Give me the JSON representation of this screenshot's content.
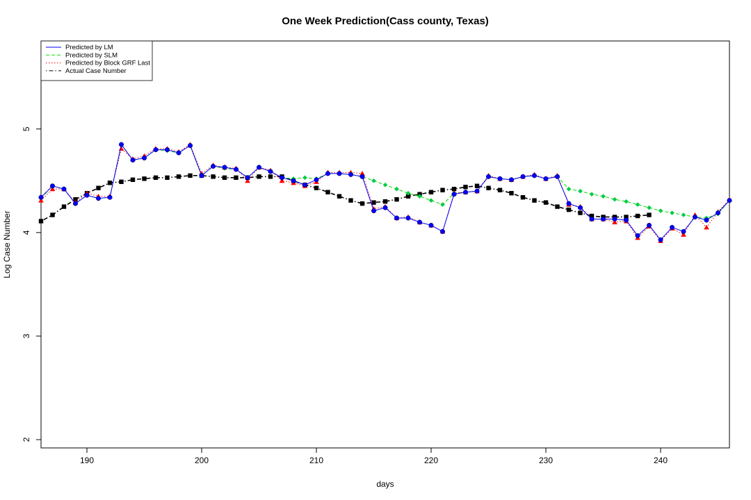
{
  "chart_data": {
    "type": "line",
    "title": "One Week Prediction(Cass county, Texas)",
    "xlabel": "days",
    "ylabel": "Log Case Number",
    "xlim": [
      186,
      246
    ],
    "ylim": [
      1.92,
      5.85
    ],
    "x_ticks": [
      190,
      200,
      210,
      220,
      230,
      240
    ],
    "y_ticks": [
      2,
      3,
      4,
      5
    ],
    "grid": false,
    "legend_position": "top-left",
    "x": [
      186,
      187,
      188,
      189,
      190,
      191,
      192,
      193,
      194,
      195,
      196,
      197,
      198,
      199,
      200,
      201,
      202,
      203,
      204,
      205,
      206,
      207,
      208,
      209,
      210,
      211,
      212,
      213,
      214,
      215,
      216,
      217,
      218,
      219,
      220,
      221,
      222,
      223,
      224,
      225,
      226,
      227,
      228,
      229,
      230,
      231,
      232,
      233,
      234,
      235,
      236,
      237,
      238,
      239,
      240,
      241,
      242,
      243,
      244,
      245,
      246
    ],
    "series": [
      {
        "name": "Predicted by LM",
        "color": "#0000ff",
        "line_style": "solid",
        "marker": "circle",
        "marker_color": "#0000ff",
        "values": [
          4.34,
          4.45,
          4.42,
          4.28,
          4.36,
          4.33,
          4.34,
          4.85,
          4.7,
          4.72,
          4.8,
          4.8,
          4.77,
          4.84,
          4.55,
          4.64,
          4.63,
          4.61,
          4.53,
          4.63,
          4.59,
          4.53,
          4.5,
          4.46,
          4.51,
          4.57,
          4.57,
          4.56,
          4.54,
          4.21,
          4.24,
          4.14,
          4.14,
          4.1,
          4.07,
          4.01,
          4.37,
          4.39,
          4.4,
          4.54,
          4.52,
          4.51,
          4.54,
          4.55,
          4.52,
          4.54,
          4.28,
          4.24,
          4.13,
          4.13,
          4.13,
          4.12,
          3.97,
          4.07,
          3.93,
          4.05,
          4.01,
          4.15,
          4.12,
          4.19,
          4.31
        ]
      },
      {
        "name": "Predicted by SLM",
        "color": "#00dd00",
        "line_style": "dashed",
        "marker": "diamond",
        "marker_color": "#00cc44",
        "values": [
          4.33,
          4.45,
          4.42,
          4.28,
          4.36,
          4.33,
          4.34,
          4.85,
          4.7,
          4.72,
          4.8,
          4.79,
          4.77,
          4.84,
          4.55,
          4.64,
          4.62,
          4.61,
          4.53,
          4.63,
          4.59,
          4.53,
          4.52,
          4.53,
          4.52,
          4.57,
          4.57,
          4.56,
          4.54,
          4.5,
          4.46,
          4.42,
          4.38,
          4.35,
          4.31,
          4.27,
          4.38,
          4.39,
          4.4,
          4.54,
          4.52,
          4.51,
          4.54,
          4.55,
          4.52,
          4.54,
          4.42,
          4.4,
          4.37,
          4.35,
          4.32,
          4.3,
          4.27,
          4.24,
          4.21,
          4.19,
          4.17,
          4.15,
          4.14,
          4.18,
          4.31
        ]
      },
      {
        "name": "Predicted by Block GRF Last",
        "color": "#ff0000",
        "line_style": "dotted",
        "marker": "triangle",
        "marker_color": "#ff0000",
        "values": [
          4.31,
          4.42,
          4.42,
          4.29,
          4.38,
          4.35,
          4.35,
          4.81,
          4.71,
          4.74,
          4.81,
          4.81,
          4.78,
          4.85,
          4.57,
          4.65,
          4.63,
          4.62,
          4.5,
          4.63,
          4.6,
          4.5,
          4.48,
          4.45,
          4.49,
          4.58,
          4.58,
          4.58,
          4.57,
          4.23,
          4.25,
          4.14,
          4.15,
          4.1,
          4.07,
          4.01,
          4.38,
          4.39,
          4.4,
          4.55,
          4.52,
          4.51,
          4.54,
          4.56,
          4.52,
          4.55,
          4.27,
          4.25,
          4.13,
          4.13,
          4.1,
          4.11,
          3.95,
          4.06,
          3.92,
          4.04,
          3.98,
          4.17,
          4.05,
          4.2,
          4.32
        ]
      },
      {
        "name": "Actual Case Number",
        "color": "#000000",
        "line_style": "dotdash",
        "marker": "square",
        "marker_color": "#000000",
        "values": [
          4.11,
          4.17,
          4.25,
          4.32,
          4.38,
          4.43,
          4.48,
          4.49,
          4.51,
          4.52,
          4.53,
          4.53,
          4.54,
          4.55,
          4.55,
          4.54,
          4.53,
          4.53,
          4.53,
          4.54,
          4.54,
          4.54,
          4.5,
          4.46,
          4.43,
          4.39,
          4.35,
          4.31,
          4.28,
          4.29,
          4.3,
          4.32,
          4.35,
          4.37,
          4.39,
          4.41,
          4.42,
          4.44,
          4.45,
          4.43,
          4.41,
          4.38,
          4.34,
          4.31,
          4.29,
          4.25,
          4.22,
          4.19,
          4.16,
          4.15,
          4.15,
          4.15,
          4.16,
          4.17,
          null,
          null,
          null,
          null,
          null,
          null,
          null
        ]
      }
    ]
  }
}
